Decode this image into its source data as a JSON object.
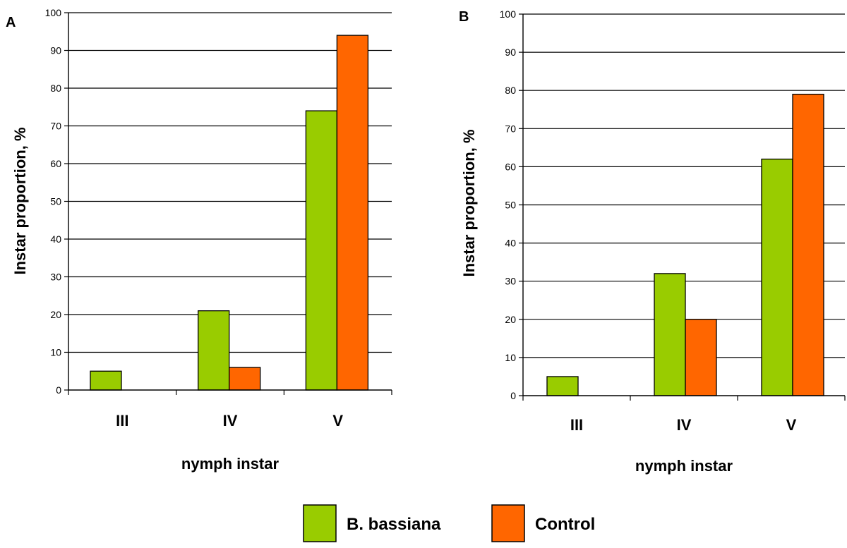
{
  "legend": [
    {
      "name": "B. bassiana",
      "color": "#99cc00"
    },
    {
      "name": "Control",
      "color": "#ff6600"
    }
  ],
  "chart_data": [
    {
      "type": "bar",
      "panel": "A",
      "categories": [
        "III",
        "IV",
        "V"
      ],
      "series": [
        {
          "name": "B. bassiana",
          "color": "#99cc00",
          "values": [
            5,
            21,
            74
          ]
        },
        {
          "name": "Control",
          "color": "#ff6600",
          "values": [
            0,
            6,
            94
          ]
        }
      ],
      "xlabel": "nymph instar",
      "ylabel": "Instar proportion, %",
      "ylim": [
        0,
        100
      ],
      "yticks": [
        0,
        10,
        20,
        30,
        40,
        50,
        60,
        70,
        80,
        90,
        100
      ],
      "grid": "horizontal",
      "legend_position": "bottom"
    },
    {
      "type": "bar",
      "panel": "B",
      "categories": [
        "III",
        "IV",
        "V"
      ],
      "series": [
        {
          "name": "B. bassiana",
          "color": "#99cc00",
          "values": [
            5,
            32,
            62
          ]
        },
        {
          "name": "Control",
          "color": "#ff6600",
          "values": [
            0,
            20,
            79
          ]
        }
      ],
      "xlabel": "nymph instar",
      "ylabel": "Instar proportion, %",
      "ylim": [
        0,
        100
      ],
      "yticks": [
        0,
        10,
        20,
        30,
        40,
        50,
        60,
        70,
        80,
        90,
        100
      ],
      "grid": "horizontal",
      "legend_position": "bottom"
    }
  ]
}
